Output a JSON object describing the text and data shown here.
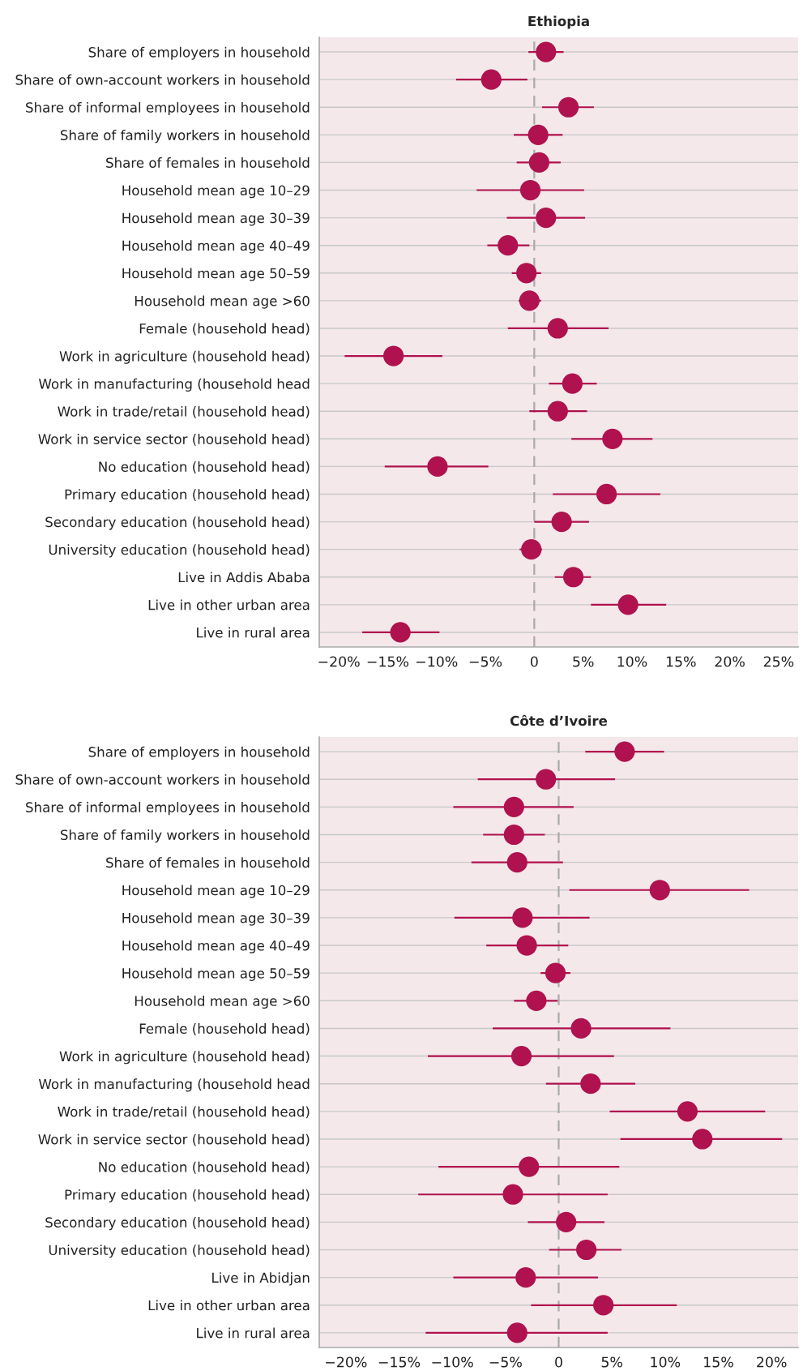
{
  "chart_data": [
    {
      "type": "scatter",
      "title": "Ethiopia",
      "orientation": "horizontal",
      "marker": "circle",
      "grid": "y",
      "categories": [
        "Share of employers in household",
        "Share of own-account workers in household",
        "Share of informal employees in household",
        "Share of family workers in household",
        "Share of females in household",
        "Household mean age 10–29",
        "Household mean age 30–39",
        "Household mean age 40–49",
        "Household mean age 50–59",
        "Household mean age >60",
        "Female (household head)",
        "Work in agriculture (household head)",
        "Work in manufacturing (household head",
        "Work in trade/retail (household head)",
        "Work in service sector (household head)",
        "No education (household head)",
        "Primary education (household head)",
        "Secondary education (household head)",
        "University education (household head)",
        "Live in Addis Ababa",
        "Live in other urban area",
        "Live in rural area"
      ],
      "color": "#b0124f",
      "values": [
        1.2,
        -4.4,
        3.5,
        0.4,
        0.5,
        -0.4,
        1.2,
        -2.7,
        -0.8,
        -0.5,
        2.4,
        -14.4,
        3.9,
        2.4,
        8.0,
        -9.9,
        7.4,
        2.8,
        -0.3,
        4.0,
        9.6,
        -13.7
      ],
      "errors": [
        [
          -0.6,
          3.0
        ],
        [
          -8.0,
          -0.7
        ],
        [
          0.8,
          6.1
        ],
        [
          -2.1,
          2.9
        ],
        [
          -1.8,
          2.7
        ],
        [
          -5.9,
          5.1
        ],
        [
          -2.8,
          5.2
        ],
        [
          -4.8,
          -0.5
        ],
        [
          -2.3,
          0.7
        ],
        [
          -1.6,
          0.7
        ],
        [
          -2.7,
          7.6
        ],
        [
          -19.4,
          -9.4
        ],
        [
          1.5,
          6.4
        ],
        [
          -0.5,
          5.4
        ],
        [
          3.8,
          12.1
        ],
        [
          -15.3,
          -4.7
        ],
        [
          1.9,
          12.9
        ],
        [
          0.0,
          5.6
        ],
        [
          -1.5,
          0.8
        ],
        [
          2.1,
          5.8
        ],
        [
          5.8,
          13.5
        ],
        [
          -17.6,
          -9.7
        ]
      ],
      "xlim": [
        -22,
        27
      ],
      "xticks": [
        {
          "value": -20,
          "label": "−20%"
        },
        {
          "value": -15,
          "label": "−15%"
        },
        {
          "value": -10,
          "label": "−10%"
        },
        {
          "value": -5,
          "label": "−5%"
        },
        0,
        {
          "value": 5,
          "label": "5%"
        },
        {
          "value": 10,
          "label": "10%"
        },
        {
          "value": 15,
          "label": "15%"
        },
        {
          "value": 20,
          "label": "20%"
        },
        {
          "value": 25,
          "label": "25%"
        }
      ],
      "ref_lines": [
        {
          "axis": "x",
          "value": 0,
          "color": "#aaaaaa",
          "line_style": "dashed"
        }
      ]
    },
    {
      "type": "scatter",
      "title": "Côte d’Ivoire",
      "orientation": "horizontal",
      "marker": "circle",
      "grid": "y",
      "categories": [
        "Share of employers in household",
        "Share of own-account workers in household",
        "Share of informal employees in household",
        "Share of family workers in household",
        "Share of females in household",
        "Household mean age 10–29",
        "Household mean age 30–39",
        "Household mean age 40–49",
        "Household mean age 50–59",
        "Household mean age >60",
        "Female (household head)",
        "Work in agriculture (household head)",
        "Work in manufacturing (household head",
        "Work in trade/retail (household head)",
        "Work in service sector (household head)",
        "No education (household head)",
        "Primary education (household head)",
        "Secondary education (household head)",
        "University education (household head)",
        "Live in Abidjan",
        "Live in other urban area",
        "Live in rural area"
      ],
      "color": "#b0124f",
      "values": [
        6.2,
        -1.2,
        -4.2,
        -4.2,
        -3.9,
        9.5,
        -3.4,
        -3.0,
        -0.3,
        -2.1,
        2.1,
        -3.5,
        3.0,
        12.1,
        13.5,
        -2.8,
        -4.3,
        0.7,
        2.6,
        -3.1,
        4.2,
        -3.9
      ],
      "errors": [
        [
          2.5,
          9.9
        ],
        [
          -7.6,
          5.3
        ],
        [
          -9.9,
          1.4
        ],
        [
          -7.1,
          -1.3
        ],
        [
          -8.2,
          0.4
        ],
        [
          1.0,
          17.9
        ],
        [
          -9.8,
          2.9
        ],
        [
          -6.8,
          0.9
        ],
        [
          -1.7,
          1.1
        ],
        [
          -4.2,
          -0.1
        ],
        [
          -6.2,
          10.5
        ],
        [
          -12.3,
          5.2
        ],
        [
          -1.2,
          7.2
        ],
        [
          4.8,
          19.4
        ],
        [
          5.8,
          21.0
        ],
        [
          -11.3,
          5.7
        ],
        [
          -13.2,
          4.6
        ],
        [
          -2.9,
          4.3
        ],
        [
          -0.9,
          5.9
        ],
        [
          -9.9,
          3.7
        ],
        [
          -2.6,
          11.1
        ],
        [
          -12.5,
          4.6
        ]
      ],
      "xlim": [
        -22.5,
        22.5
      ],
      "xticks": [
        {
          "value": -20,
          "label": "−20%"
        },
        {
          "value": -15,
          "label": "−15%"
        },
        {
          "value": -10,
          "label": "−10%"
        },
        {
          "value": -5,
          "label": "−5%"
        },
        0,
        {
          "value": 5,
          "label": "5%"
        },
        {
          "value": 10,
          "label": "10%"
        },
        {
          "value": 15,
          "label": "15%"
        },
        {
          "value": 20,
          "label": "20%"
        }
      ],
      "ref_lines": [
        {
          "axis": "x",
          "value": 0,
          "color": "#aaaaaa",
          "line_style": "dashed"
        }
      ]
    }
  ]
}
